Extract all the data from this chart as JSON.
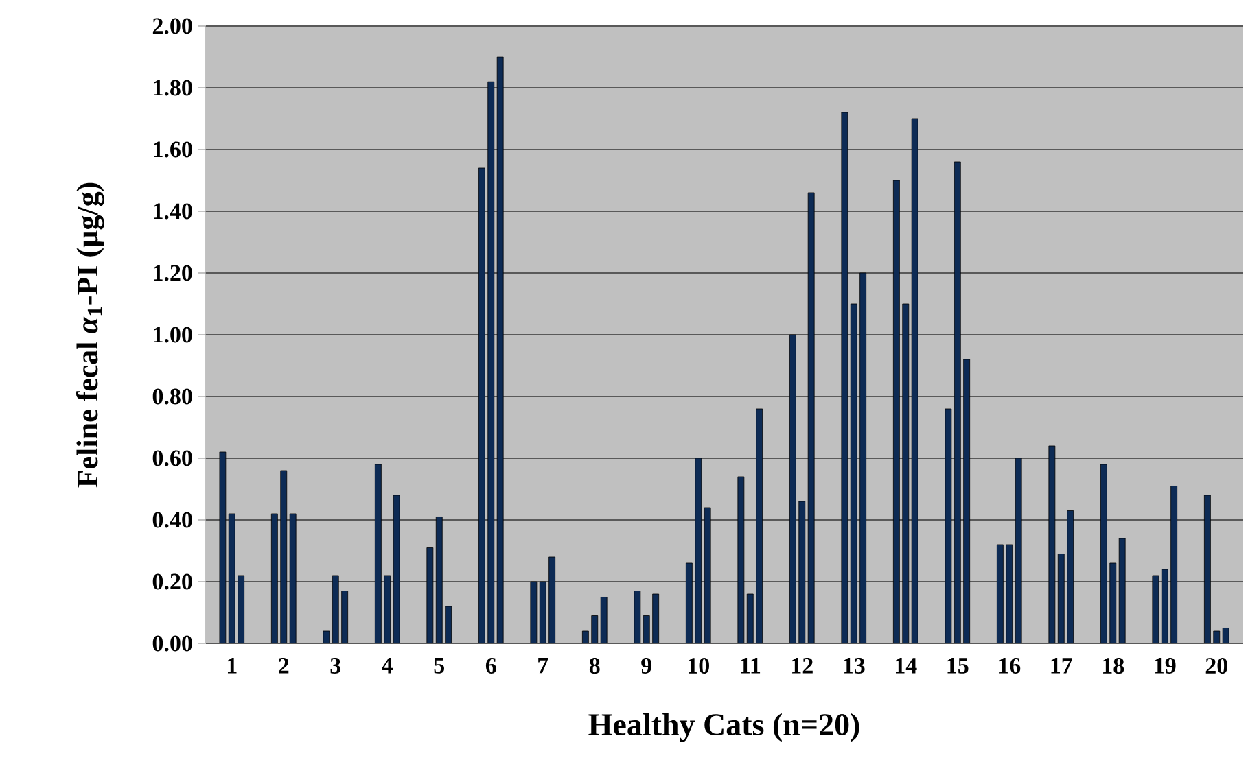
{
  "chart_data": {
    "type": "bar",
    "xlabel": "Healthy Cats (n=20)",
    "ylabel": "Feline fecal *α*$_{1}$-PI (µg/g)",
    "categories": [
      "1",
      "2",
      "3",
      "4",
      "5",
      "6",
      "7",
      "8",
      "9",
      "10",
      "11",
      "12",
      "13",
      "14",
      "15",
      "16",
      "17",
      "18",
      "19",
      "20"
    ],
    "series": [
      {
        "color": "#0d2b55",
        "values": [
          0.62,
          0.42,
          0.04,
          0.58,
          0.31,
          1.54,
          0.2,
          0.04,
          0.17,
          0.26,
          0.54,
          1.0,
          1.72,
          1.5,
          0.76,
          0.32,
          0.64,
          0.58,
          0.22,
          0.48
        ]
      },
      {
        "color": "#0d2b55",
        "values": [
          0.42,
          0.56,
          0.22,
          0.22,
          0.41,
          1.82,
          0.2,
          0.09,
          0.09,
          0.6,
          0.16,
          0.46,
          1.1,
          1.1,
          1.56,
          0.32,
          0.29,
          0.26,
          0.24,
          0.04
        ]
      },
      {
        "color": "#0d2b55",
        "values": [
          0.22,
          0.42,
          0.17,
          0.48,
          0.12,
          1.9,
          0.28,
          0.15,
          0.16,
          0.44,
          0.76,
          1.46,
          1.2,
          1.7,
          0.92,
          0.6,
          0.43,
          0.34,
          0.51,
          0.05
        ]
      }
    ],
    "ylim": [
      0,
      2
    ],
    "yticks": [
      {
        "value": 0,
        "label": "0.00"
      },
      {
        "value": 0.2,
        "label": "0.20"
      },
      {
        "value": 0.4,
        "label": "0.40"
      },
      {
        "value": 0.6,
        "label": "0.60"
      },
      {
        "value": 0.8,
        "label": "0.80"
      },
      {
        "value": 1,
        "label": "1.00"
      },
      {
        "value": 1.2,
        "label": "1.20"
      },
      {
        "value": 1.4,
        "label": "1.40"
      },
      {
        "value": 1.6,
        "label": "1.60"
      },
      {
        "value": 1.8,
        "label": "1.80"
      },
      {
        "value": 2,
        "label": "2.00"
      }
    ],
    "grid": "y"
  }
}
